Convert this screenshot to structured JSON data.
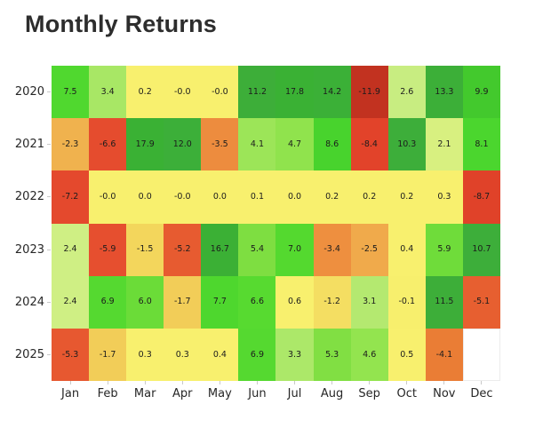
{
  "chart_data": {
    "type": "heatmap",
    "title": "Monthly Returns",
    "x_categories": [
      "Jan",
      "Feb",
      "Mar",
      "Apr",
      "May",
      "Jun",
      "Jul",
      "Aug",
      "Sep",
      "Oct",
      "Nov",
      "Dec"
    ],
    "y_categories": [
      "2020",
      "2021",
      "2022",
      "2023",
      "2024",
      "2025"
    ],
    "rows": [
      {
        "year": "2020",
        "values": [
          "7.5",
          "3.4",
          "0.2",
          "-0.0",
          "-0.0",
          "11.2",
          "17.8",
          "14.2",
          "-11.9",
          "2.6",
          "13.3",
          "9.9"
        ]
      },
      {
        "year": "2021",
        "values": [
          "-2.3",
          "-6.6",
          "17.9",
          "12.0",
          "-3.5",
          "4.1",
          "4.7",
          "8.6",
          "-8.4",
          "10.3",
          "2.1",
          "8.1"
        ]
      },
      {
        "year": "2022",
        "values": [
          "-7.2",
          "-0.0",
          "0.0",
          "-0.0",
          "0.0",
          "0.1",
          "0.0",
          "0.2",
          "0.2",
          "0.2",
          "0.3",
          "-8.7"
        ]
      },
      {
        "year": "2023",
        "values": [
          "2.4",
          "-5.9",
          "-1.5",
          "-5.2",
          "16.7",
          "5.4",
          "7.0",
          "-3.4",
          "-2.5",
          "0.4",
          "5.9",
          "10.7"
        ]
      },
      {
        "year": "2024",
        "values": [
          "2.4",
          "6.9",
          "6.0",
          "-1.7",
          "7.7",
          "6.6",
          "0.6",
          "-1.2",
          "3.1",
          "-0.1",
          "11.5",
          "-5.1"
        ]
      },
      {
        "year": "2025",
        "values": [
          "-5.3",
          "-1.7",
          "0.3",
          "0.3",
          "0.4",
          "6.9",
          "3.3",
          "5.3",
          "4.6",
          "0.5",
          "-4.1",
          ""
        ]
      }
    ],
    "legend_position": "none",
    "grid_lines": "off",
    "colors": {
      "background": "#ffffff",
      "title_text": "#2d2d2d",
      "axis_text": "#262626",
      "cell_text": "#1c1c1c",
      "empty_cell": "#ffffff",
      "tick": "#c9c9c9"
    },
    "color_stops": [
      [
        -12.0,
        "#c13220"
      ],
      [
        -8.5,
        "#e2432a"
      ],
      [
        -5.5,
        "#e75130"
      ],
      [
        -4.5,
        "#e7732f"
      ],
      [
        -3.4,
        "#ee8f3f"
      ],
      [
        -2.4,
        "#f0ad4c"
      ],
      [
        -1.5,
        "#f3d65c"
      ],
      [
        -0.6,
        "#f7ef6d"
      ],
      [
        0.6,
        "#f8f06e"
      ],
      [
        1.5,
        "#e9f378"
      ],
      [
        2.5,
        "#ccee85"
      ],
      [
        3.4,
        "#a8e765"
      ],
      [
        4.6,
        "#93e44f"
      ],
      [
        5.6,
        "#79dd3e"
      ],
      [
        6.6,
        "#57da30"
      ],
      [
        8.4,
        "#49d52d"
      ],
      [
        9.9,
        "#43c92d"
      ],
      [
        10.3,
        "#3dae3a"
      ],
      [
        18.0,
        "#3ab134"
      ]
    ]
  }
}
